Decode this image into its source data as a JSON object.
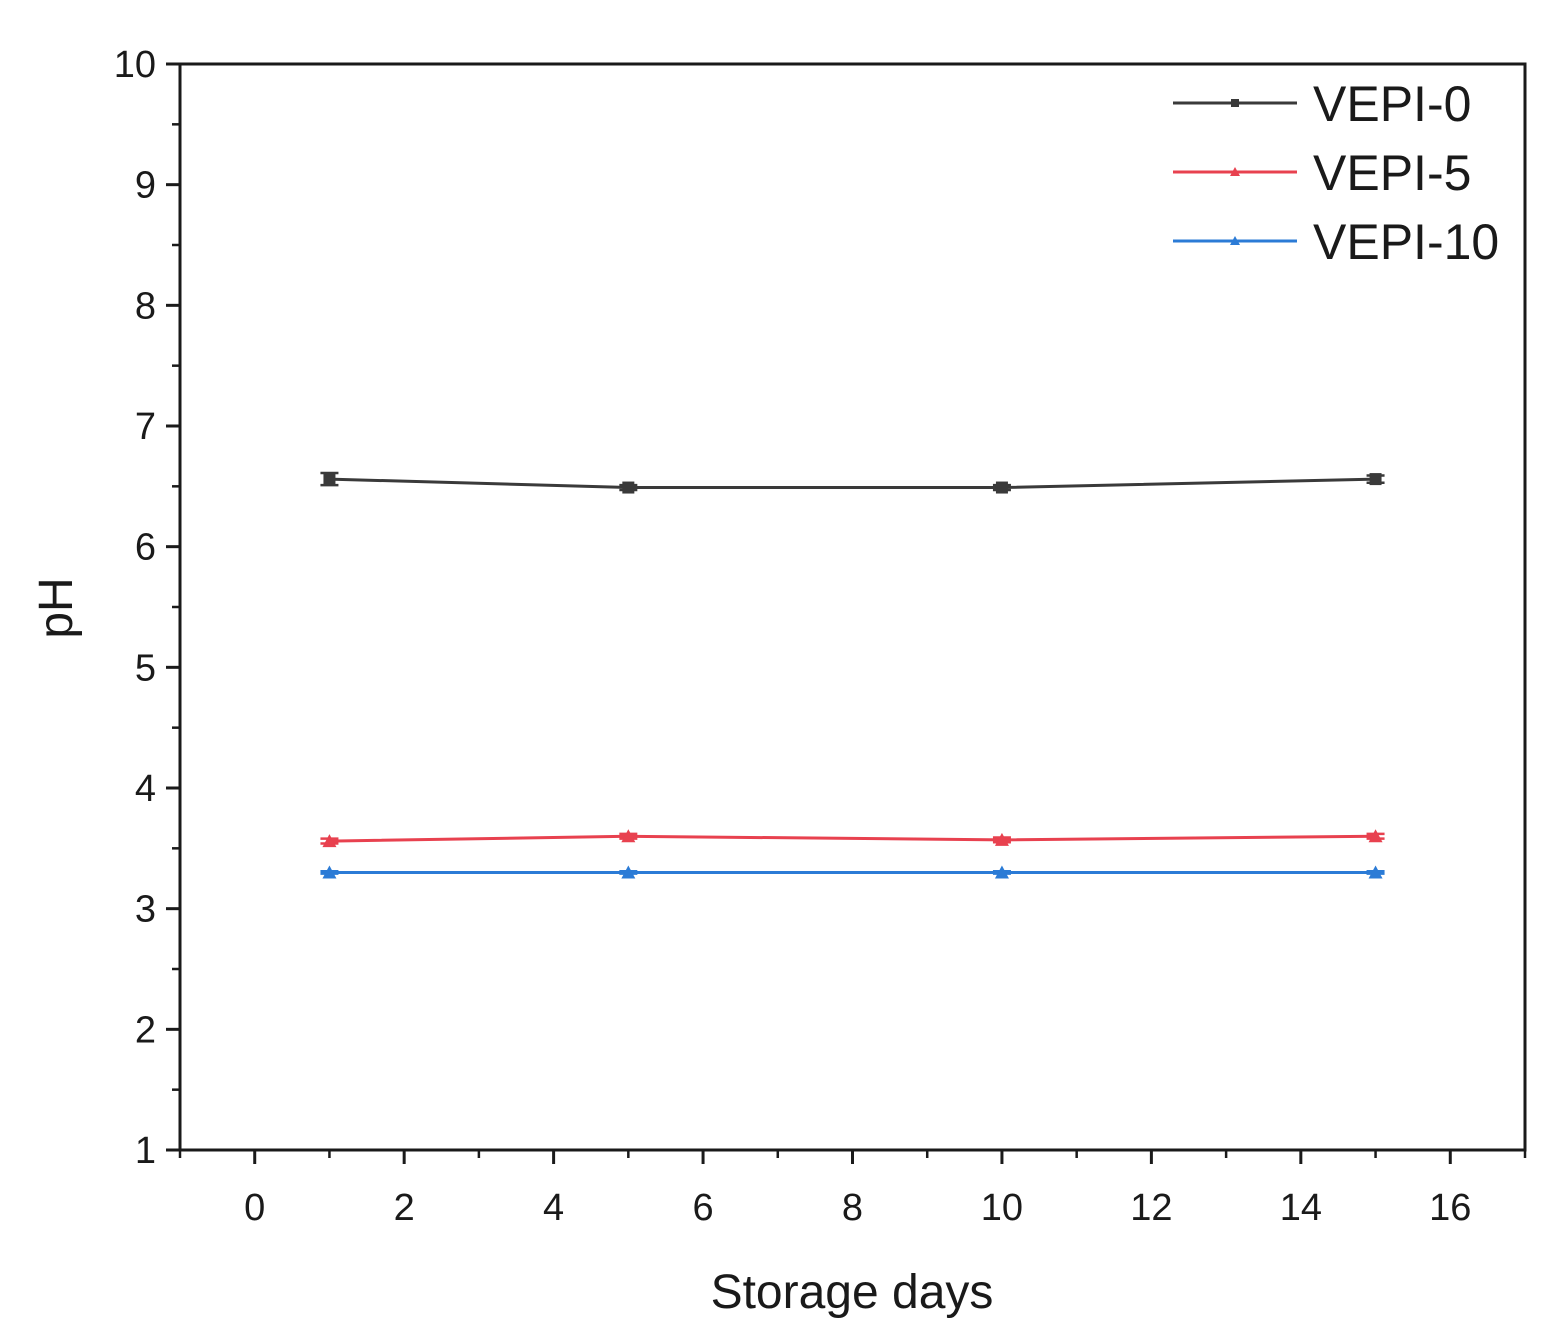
{
  "chart_data": {
    "type": "line",
    "title": "",
    "xlabel": "Storage days",
    "ylabel": "pH",
    "xlim": [
      -1,
      17
    ],
    "ylim": [
      1,
      10
    ],
    "xticks": [
      0,
      2,
      4,
      6,
      8,
      10,
      12,
      14,
      16
    ],
    "xtick_labels": [
      "0",
      "2",
      "4",
      "6",
      "8",
      "10",
      "12",
      "14",
      "16"
    ],
    "yticks": [
      1,
      2,
      3,
      4,
      5,
      6,
      7,
      8,
      9,
      10
    ],
    "ytick_labels": [
      "1",
      "2",
      "3",
      "4",
      "5",
      "6",
      "7",
      "8",
      "9",
      "10"
    ],
    "grid": false,
    "legend_position": "top-right",
    "x": [
      1,
      5,
      10,
      15
    ],
    "series": [
      {
        "name": "VEPI-0",
        "color": "#3a3a3a",
        "marker": "square",
        "values": [
          6.56,
          6.49,
          6.49,
          6.56
        ],
        "errors": [
          0.05,
          0.02,
          0.02,
          0.03
        ]
      },
      {
        "name": "VEPI-5",
        "color": "#e8414f",
        "marker": "triangle",
        "values": [
          3.56,
          3.6,
          3.57,
          3.6
        ],
        "errors": [
          0.02,
          0.02,
          0.02,
          0.02
        ]
      },
      {
        "name": "VEPI-10",
        "color": "#2b7bd6",
        "marker": "triangle",
        "values": [
          3.3,
          3.3,
          3.3,
          3.3
        ],
        "errors": [
          0.01,
          0.01,
          0.01,
          0.01
        ]
      }
    ]
  }
}
